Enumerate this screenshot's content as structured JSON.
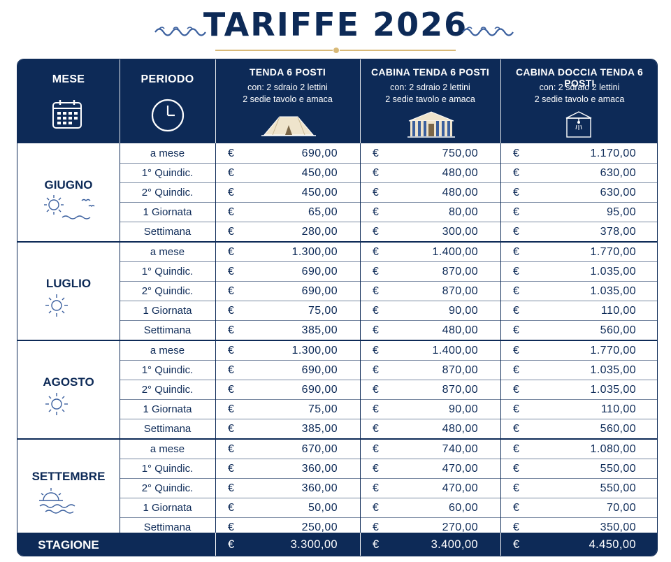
{
  "title": "TARIFFE 2026",
  "colors": {
    "navy": "#0d2a57",
    "gold": "#d8b978",
    "white": "#ffffff"
  },
  "header": {
    "mese": "MESE",
    "periodo": "PERIODO",
    "columns": [
      {
        "name": "TENDA 6 POSTI",
        "sub1": "con: 2 sdraio 2 lettini",
        "sub2": "2 sedie tavolo e amaca",
        "icon": "tent-icon"
      },
      {
        "name": "CABINA TENDA 6 POSTI",
        "sub1": "con: 2 sdraio 2 lettini",
        "sub2": "2 sedie tavolo e amaca",
        "icon": "cabin-tent-icon"
      },
      {
        "name": "CABINA DOCCIA TENDA 6 POSTI",
        "sub1": "con: 2 sdraio 2 lettini",
        "sub2": "2 sedie tavolo e amaca",
        "icon": "shower-cabin-icon"
      }
    ]
  },
  "currency": "€",
  "months": [
    {
      "name": "GIUGNO",
      "icon": "sun-waves-birds-icon",
      "rows": [
        {
          "period": "a mese",
          "prices": [
            "690,00",
            "750,00",
            "1.170,00"
          ]
        },
        {
          "period": "1° Quindic.",
          "prices": [
            "450,00",
            "480,00",
            "630,00"
          ]
        },
        {
          "period": "2° Quindic.",
          "prices": [
            "450,00",
            "480,00",
            "630,00"
          ]
        },
        {
          "period": "1 Giornata",
          "prices": [
            "65,00",
            "80,00",
            "95,00"
          ]
        },
        {
          "period": "Settimana",
          "prices": [
            "280,00",
            "300,00",
            "378,00"
          ]
        }
      ]
    },
    {
      "name": "LUGLIO",
      "icon": "sun-icon",
      "rows": [
        {
          "period": "a mese",
          "prices": [
            "1.300,00",
            "1.400,00",
            "1.770,00"
          ]
        },
        {
          "period": "1° Quindic.",
          "prices": [
            "690,00",
            "870,00",
            "1.035,00"
          ]
        },
        {
          "period": "2° Quindic.",
          "prices": [
            "690,00",
            "870,00",
            "1.035,00"
          ]
        },
        {
          "period": "1 Giornata",
          "prices": [
            "75,00",
            "90,00",
            "110,00"
          ]
        },
        {
          "period": "Settimana",
          "prices": [
            "385,00",
            "480,00",
            "560,00"
          ]
        }
      ]
    },
    {
      "name": "AGOSTO",
      "icon": "sun-icon",
      "rows": [
        {
          "period": "a mese",
          "prices": [
            "1.300,00",
            "1.400,00",
            "1.770,00"
          ]
        },
        {
          "period": "1° Quindic.",
          "prices": [
            "690,00",
            "870,00",
            "1.035,00"
          ]
        },
        {
          "period": "2° Quindic.",
          "prices": [
            "690,00",
            "870,00",
            "1.035,00"
          ]
        },
        {
          "period": "1 Giornata",
          "prices": [
            "75,00",
            "90,00",
            "110,00"
          ]
        },
        {
          "period": "Settimana",
          "prices": [
            "385,00",
            "480,00",
            "560,00"
          ]
        }
      ]
    },
    {
      "name": "SETTEMBRE",
      "icon": "sunset-waves-icon",
      "rows": [
        {
          "period": "a mese",
          "prices": [
            "670,00",
            "740,00",
            "1.080,00"
          ]
        },
        {
          "period": "1° Quindic.",
          "prices": [
            "360,00",
            "470,00",
            "550,00"
          ]
        },
        {
          "period": "2° Quindic.",
          "prices": [
            "360,00",
            "470,00",
            "550,00"
          ]
        },
        {
          "period": "1 Giornata",
          "prices": [
            "50,00",
            "60,00",
            "70,00"
          ]
        },
        {
          "period": "Settimana",
          "prices": [
            "250,00",
            "270,00",
            "350,00"
          ]
        }
      ]
    }
  ],
  "season": {
    "label": "STAGIONE",
    "prices": [
      "3.300,00",
      "3.400,00",
      "4.450,00"
    ]
  }
}
